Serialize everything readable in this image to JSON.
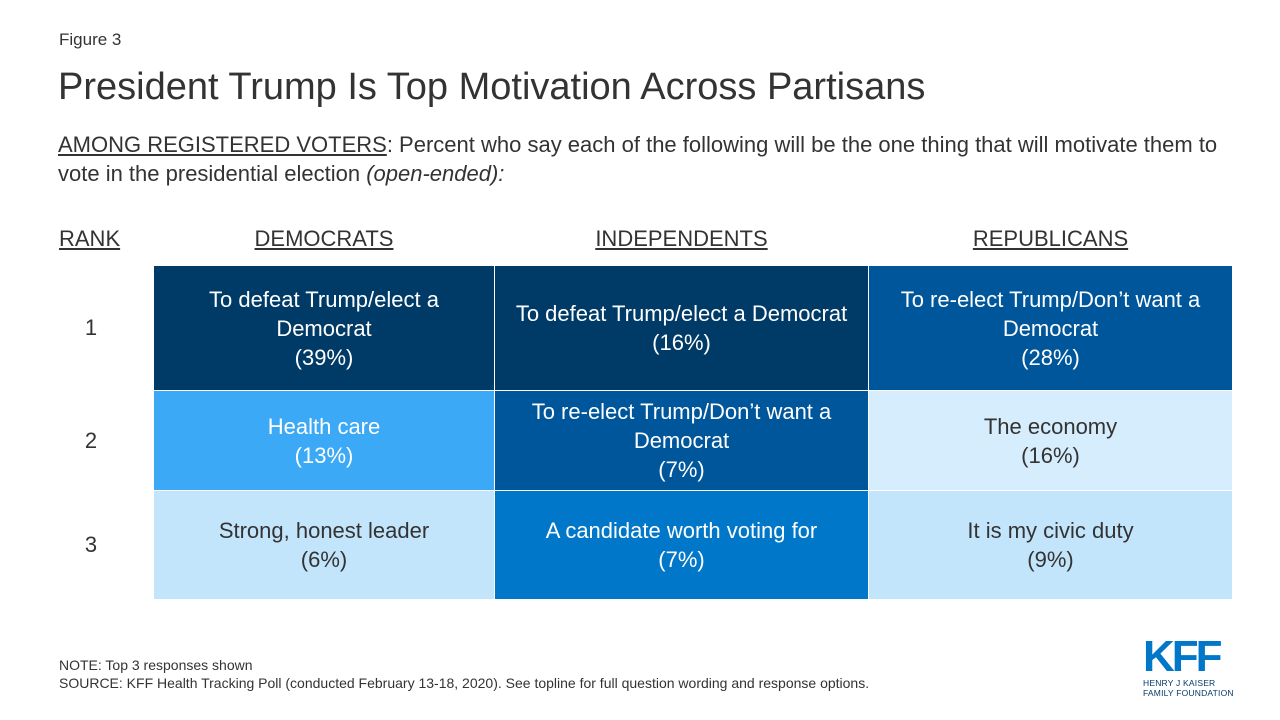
{
  "figure_label": "Figure 3",
  "title": "President Trump Is Top Motivation Across Partisans",
  "subtitle": {
    "lead": "AMONG REGISTERED VOTERS",
    "text": ": Percent who say each of the following will be the one thing that will motivate them to vote in the presidential election ",
    "italic": "(open-ended):"
  },
  "chart_data": {
    "type": "table",
    "rank_header": "RANK",
    "columns": [
      "DEMOCRATS",
      "INDEPENDENTS",
      "REPUBLICANS"
    ],
    "ranks": [
      "1",
      "2",
      "3"
    ],
    "rows": [
      [
        {
          "text": "To defeat Trump/elect a Democrat",
          "value": "(39%)",
          "color": "#003a66"
        },
        {
          "text": "To defeat Trump/elect a Democrat",
          "value": "(16%)",
          "color": "#003a66"
        },
        {
          "text": "To re-elect Trump/Don’t want a Democrat",
          "value": "(28%)",
          "color": "#00569a"
        }
      ],
      [
        {
          "text": "Health care",
          "value": "(13%)",
          "color": "#3ba9f5"
        },
        {
          "text": "To re-elect Trump/Don’t want a Democrat",
          "value": "(7%)",
          "color": "#00569a"
        },
        {
          "text": "The economy",
          "value": "(16%)",
          "color": "#d5edfc"
        }
      ],
      [
        {
          "text": "Strong, honest leader",
          "value": "(6%)",
          "color": "#c3e5fb"
        },
        {
          "text": "A candidate worth voting for",
          "value": "(7%)",
          "color": "#0077c8"
        },
        {
          "text": "It is my civic duty",
          "value": "(9%)",
          "color": "#c3e5fb"
        }
      ]
    ]
  },
  "note": "NOTE: Top 3 responses shown",
  "source": "SOURCE: KFF Health Tracking Poll (conducted February 13-18, 2020). See topline for full question wording and response options.",
  "logo": {
    "mark": "KFF",
    "line1": "HENRY J KAISER",
    "line2": "FAMILY FOUNDATION"
  }
}
